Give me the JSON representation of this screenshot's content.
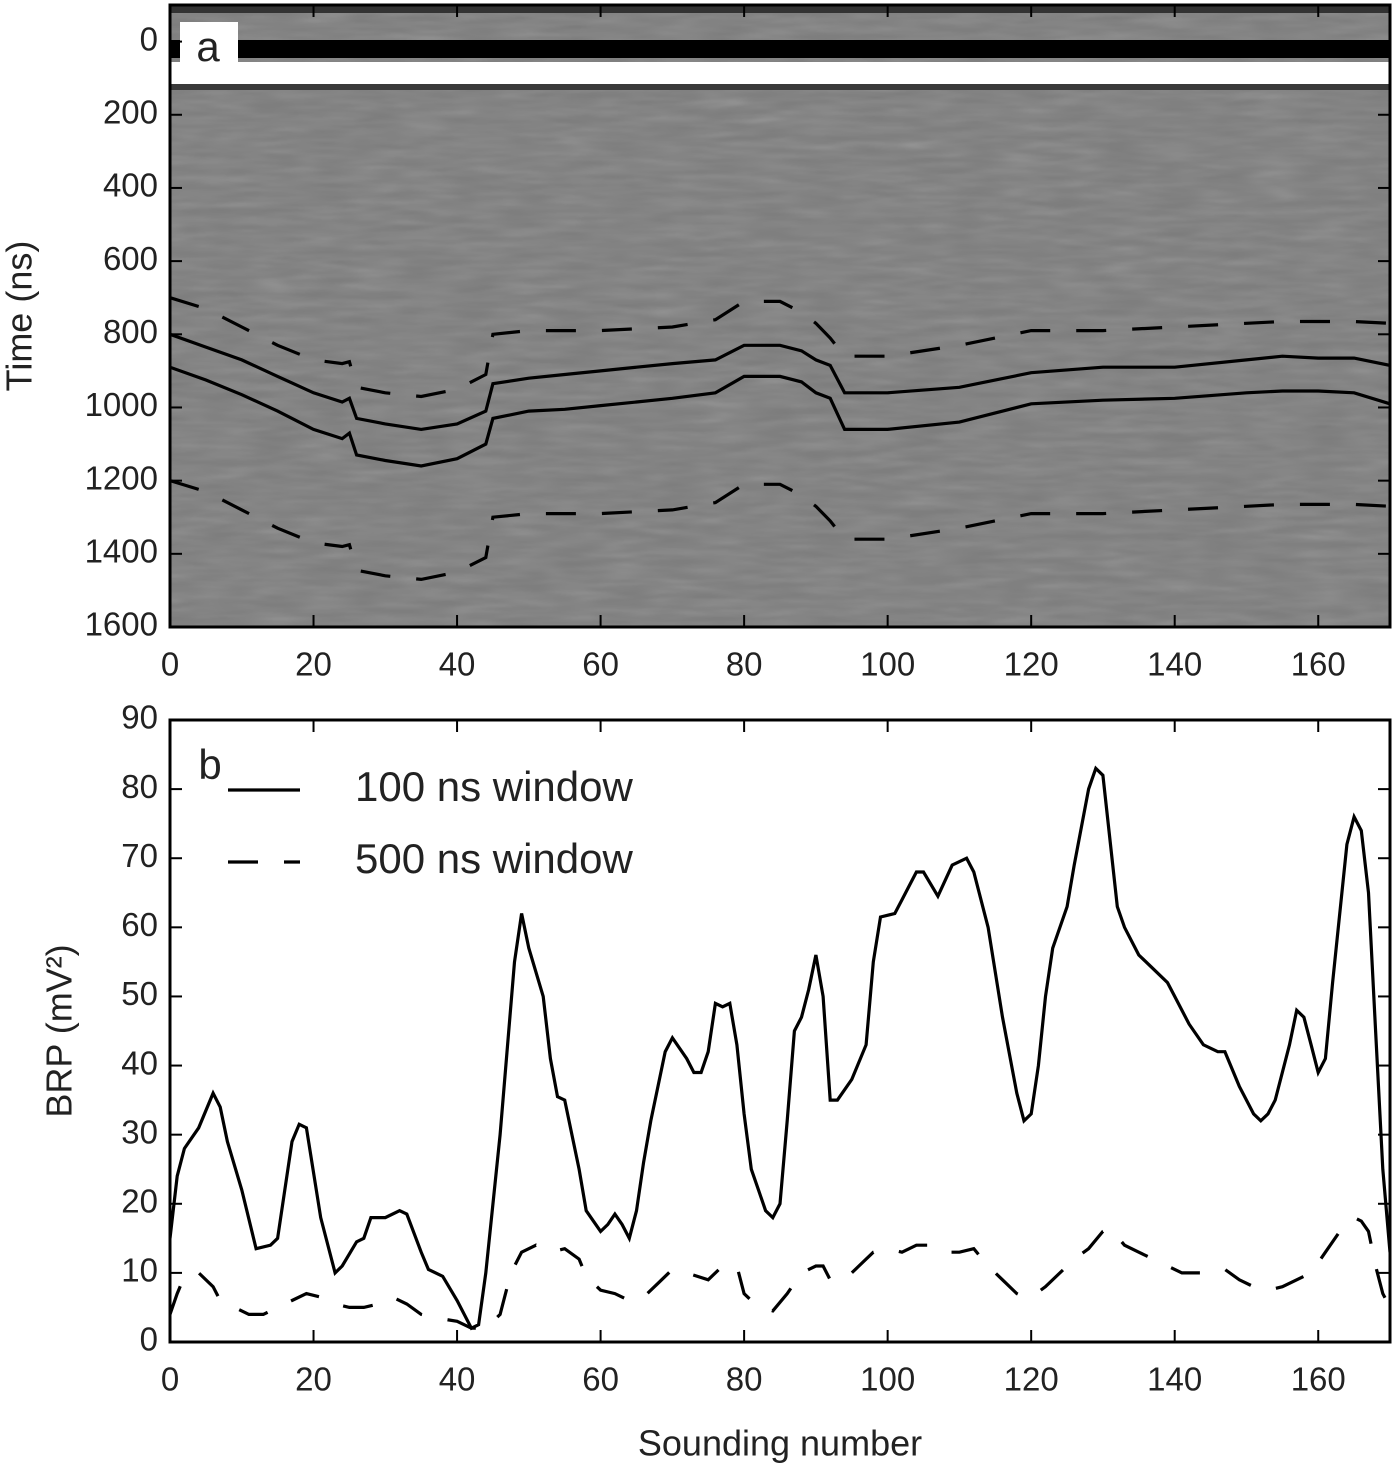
{
  "chart_data": [
    {
      "type": "line",
      "label": "a",
      "ylabel": "Time (ns)",
      "xlim": [
        0,
        170
      ],
      "xticks": [
        0,
        20,
        40,
        60,
        80,
        100,
        120,
        140,
        160
      ],
      "ylim": [
        1600,
        -100
      ],
      "yticks": [
        0,
        200,
        400,
        600,
        800,
        1000,
        1200,
        1400,
        1600
      ],
      "series": [
        {
          "color": "#000000",
          "dash": "solid",
          "x": [
            0,
            5,
            10,
            15,
            20,
            24,
            25,
            26,
            30,
            35,
            40,
            44,
            45,
            50,
            55,
            60,
            65,
            70,
            76,
            80,
            85,
            88,
            90,
            92,
            94,
            100,
            110,
            120,
            130,
            140,
            150,
            155,
            160,
            165,
            170
          ],
          "values": [
            800,
            835,
            870,
            915,
            960,
            985,
            975,
            1030,
            1045,
            1060,
            1045,
            1010,
            935,
            920,
            910,
            900,
            890,
            880,
            870,
            830,
            830,
            845,
            870,
            885,
            960,
            960,
            945,
            905,
            890,
            890,
            870,
            860,
            865,
            865,
            885
          ]
        },
        {
          "color": "#000000",
          "dash": "solid",
          "x": [
            0,
            5,
            10,
            15,
            20,
            24,
            25,
            26,
            30,
            35,
            40,
            44,
            45,
            50,
            55,
            60,
            65,
            70,
            76,
            80,
            85,
            88,
            90,
            92,
            94,
            100,
            110,
            120,
            130,
            140,
            150,
            155,
            160,
            165,
            170
          ],
          "values": [
            890,
            925,
            965,
            1010,
            1060,
            1085,
            1070,
            1130,
            1145,
            1160,
            1140,
            1100,
            1030,
            1010,
            1005,
            995,
            985,
            975,
            960,
            915,
            915,
            930,
            960,
            975,
            1060,
            1060,
            1040,
            990,
            980,
            975,
            960,
            955,
            955,
            960,
            990
          ]
        },
        {
          "color": "#000000",
          "dash": "dashed",
          "x": [
            0,
            5,
            10,
            15,
            20,
            24,
            25,
            26,
            30,
            35,
            40,
            44,
            45,
            50,
            55,
            60,
            65,
            70,
            76,
            80,
            85,
            88,
            90,
            92,
            94,
            100,
            110,
            120,
            130,
            140,
            150,
            155,
            160,
            165,
            170
          ],
          "values": [
            700,
            730,
            780,
            830,
            870,
            880,
            875,
            945,
            960,
            970,
            950,
            910,
            800,
            790,
            790,
            790,
            785,
            780,
            760,
            710,
            710,
            740,
            770,
            810,
            860,
            860,
            830,
            790,
            790,
            780,
            770,
            765,
            765,
            765,
            770
          ]
        },
        {
          "color": "#000000",
          "dash": "dashed",
          "x": [
            0,
            5,
            10,
            15,
            20,
            24,
            25,
            26,
            30,
            35,
            40,
            44,
            45,
            50,
            55,
            60,
            65,
            70,
            76,
            80,
            85,
            88,
            90,
            92,
            94,
            100,
            110,
            120,
            130,
            140,
            150,
            155,
            160,
            165,
            170
          ],
          "values": [
            1200,
            1230,
            1280,
            1330,
            1370,
            1380,
            1375,
            1445,
            1460,
            1470,
            1450,
            1410,
            1300,
            1290,
            1290,
            1290,
            1285,
            1280,
            1260,
            1210,
            1210,
            1240,
            1270,
            1310,
            1360,
            1360,
            1330,
            1290,
            1290,
            1280,
            1270,
            1265,
            1265,
            1265,
            1270
          ]
        }
      ]
    },
    {
      "type": "line",
      "label": "b",
      "ylabel": "BRP (mV²)",
      "xlabel": "Sounding number",
      "legend": "upper left",
      "xlim": [
        0,
        170
      ],
      "xticks": [
        0,
        20,
        40,
        60,
        80,
        100,
        120,
        140,
        160
      ],
      "ylim": [
        0,
        90
      ],
      "yticks": [
        0,
        10,
        20,
        30,
        40,
        50,
        60,
        70,
        80,
        90
      ],
      "series": [
        {
          "name": "100 ns window",
          "color": "#000000",
          "dash": "solid",
          "x": [
            0,
            1,
            2,
            4,
            6,
            7,
            8,
            10,
            12,
            14,
            15,
            17,
            18,
            19,
            21,
            23,
            24,
            26,
            27,
            28,
            30,
            32,
            33,
            35,
            36,
            38,
            40,
            42,
            43,
            44,
            46,
            48,
            49,
            50,
            52,
            53,
            54,
            55,
            57,
            58,
            60,
            61,
            62,
            63,
            64,
            65,
            66,
            67,
            69,
            70,
            72,
            73,
            74,
            75,
            76,
            77,
            78,
            79,
            80,
            81,
            82,
            83,
            84,
            85,
            86,
            87,
            88,
            89,
            90,
            91,
            92,
            93,
            95,
            97,
            98,
            99,
            101,
            102,
            104,
            105,
            107,
            109,
            111,
            112,
            114,
            116,
            118,
            119,
            120,
            121,
            122,
            123,
            125,
            126,
            128,
            129,
            130,
            132,
            133,
            135,
            137,
            139,
            140,
            142,
            144,
            146,
            147,
            149,
            151,
            152,
            153,
            154,
            156,
            157,
            158,
            159,
            160,
            161,
            162,
            164,
            165,
            166,
            167,
            168,
            169,
            170
          ],
          "values": [
            15,
            24,
            28,
            31,
            36,
            34,
            29,
            22,
            13.5,
            14,
            15,
            29,
            31.5,
            31,
            18,
            10,
            11,
            14.5,
            15,
            18,
            18,
            19,
            18.5,
            13,
            10.5,
            9.5,
            6,
            2,
            2.5,
            10,
            30,
            55,
            62,
            57,
            50,
            41,
            35.5,
            35,
            25,
            19,
            16,
            17,
            18.5,
            17,
            15,
            19,
            26,
            32,
            42,
            44,
            41,
            39,
            39,
            42,
            49,
            48.5,
            49,
            43,
            33,
            25,
            22,
            19,
            18,
            20,
            32,
            45,
            47,
            51,
            56,
            50,
            35,
            35,
            38,
            43,
            55,
            61.5,
            62,
            64,
            68,
            68,
            64.5,
            69,
            70,
            68,
            60,
            47,
            36,
            32,
            33,
            40,
            50,
            57,
            63,
            69,
            80,
            83,
            82,
            63,
            60,
            56,
            54,
            52,
            50,
            46,
            43,
            42,
            42,
            37,
            33,
            32,
            33,
            35,
            43,
            48,
            47,
            43,
            39,
            41,
            52,
            72,
            76,
            74,
            65,
            45,
            25,
            13
          ]
        },
        {
          "name": "500 ns window",
          "color": "#000000",
          "dash": "dashed",
          "x": [
            0,
            1,
            2,
            4,
            6,
            7,
            9,
            11,
            13,
            15,
            17,
            19,
            21,
            23,
            25,
            27,
            29,
            31,
            33,
            35,
            37,
            40,
            42,
            44,
            46,
            47,
            48,
            49,
            51,
            53,
            55,
            57,
            58,
            60,
            62,
            64,
            66,
            68,
            70,
            72,
            75,
            77,
            79,
            80,
            82,
            84,
            86,
            88,
            90,
            91,
            92,
            94,
            96,
            98,
            100,
            102,
            104,
            106,
            108,
            110,
            112,
            114,
            116,
            118,
            119,
            120,
            122,
            124,
            126,
            128,
            130,
            131,
            133,
            135,
            137,
            139,
            141,
            143,
            145,
            147,
            149,
            151,
            153,
            155,
            157,
            159,
            161,
            163,
            165,
            166,
            167,
            168,
            169,
            170
          ],
          "values": [
            4,
            7,
            9.5,
            10,
            8,
            6,
            5,
            4,
            4,
            5,
            6,
            7,
            6.5,
            5.5,
            5,
            5,
            5.5,
            6.5,
            5.5,
            4,
            3.5,
            3,
            2,
            2,
            4,
            8,
            11,
            13,
            14,
            13,
            13.5,
            12,
            9.5,
            7.5,
            7,
            6,
            6.5,
            8.5,
            10.5,
            10,
            9,
            11,
            11,
            7,
            5,
            4.5,
            7,
            10,
            11,
            11,
            9,
            9,
            11,
            13,
            13.5,
            13,
            14,
            14,
            13,
            13,
            13.5,
            11,
            9,
            7,
            6.5,
            6.5,
            8,
            10,
            12,
            13.5,
            16,
            16.5,
            14,
            13,
            12,
            11,
            10,
            10,
            10,
            10.5,
            9,
            8,
            7.5,
            8,
            9,
            10,
            13,
            16,
            18,
            17.5,
            16,
            11,
            7,
            5
          ]
        }
      ]
    }
  ]
}
